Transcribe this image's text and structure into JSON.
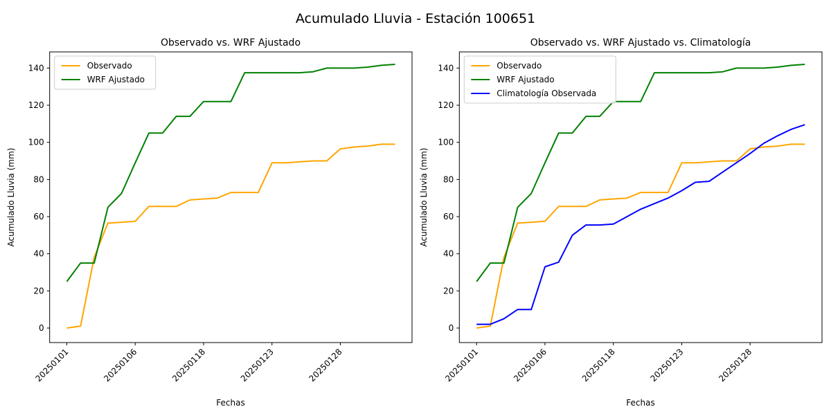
{
  "figure": {
    "title": "Acumulado Lluvia - Estación 100651",
    "background": "#ffffff"
  },
  "colors": {
    "observado": "#FFA500",
    "wrf_ajustado": "#008000",
    "climatologia": "#0000FF",
    "spine": "#000000",
    "legend_border": "#cccccc"
  },
  "chart_data": [
    {
      "type": "line",
      "title": "Observado vs. WRF Ajustado",
      "xlabel": "Fechas",
      "ylabel": "Acumulado Lluvia (mm)",
      "n_points": 25,
      "x_tick_indices": [
        0,
        5,
        10,
        15,
        20
      ],
      "x_tick_labels": [
        "20250101",
        "20250106",
        "20250118",
        "20250123",
        "20250128"
      ],
      "yticks": [
        0,
        20,
        40,
        60,
        80,
        100,
        120,
        140
      ],
      "ylim": [
        -8,
        149
      ],
      "grid": false,
      "legend_position": "upper-left",
      "series": [
        {
          "name": "Observado",
          "color_key": "observado",
          "values": [
            0,
            1,
            38,
            56.5,
            57,
            57.5,
            65.5,
            65.5,
            65.5,
            69,
            69.5,
            70,
            73,
            73,
            73,
            89,
            89,
            89.5,
            90,
            90,
            96.5,
            97.5,
            98,
            99,
            99
          ]
        },
        {
          "name": "WRF Ajustado",
          "color_key": "wrf_ajustado",
          "values": [
            25,
            35,
            35,
            65,
            72.5,
            89,
            105,
            105,
            114,
            114,
            122,
            122,
            122,
            137.5,
            137.5,
            137.5,
            137.5,
            137.5,
            138,
            140,
            140,
            140,
            140.5,
            141.5,
            142
          ]
        }
      ]
    },
    {
      "type": "line",
      "title": "Observado vs. WRF Ajustado vs. Climatología",
      "xlabel": "Fechas",
      "ylabel": "Acumulado Lluvia (mm)",
      "n_points": 25,
      "x_tick_indices": [
        0,
        5,
        10,
        15,
        20
      ],
      "x_tick_labels": [
        "20250101",
        "20250106",
        "20250118",
        "20250123",
        "20250128"
      ],
      "yticks": [
        0,
        20,
        40,
        60,
        80,
        100,
        120,
        140
      ],
      "ylim": [
        -8,
        149
      ],
      "grid": false,
      "legend_position": "upper-left",
      "series": [
        {
          "name": "Observado",
          "color_key": "observado",
          "values": [
            0,
            1,
            38,
            56.5,
            57,
            57.5,
            65.5,
            65.5,
            65.5,
            69,
            69.5,
            70,
            73,
            73,
            73,
            89,
            89,
            89.5,
            90,
            90,
            96.5,
            97.5,
            98,
            99,
            99
          ]
        },
        {
          "name": "WRF Ajustado",
          "color_key": "wrf_ajustado",
          "values": [
            25,
            35,
            35,
            65,
            72.5,
            89,
            105,
            105,
            114,
            114,
            122,
            122,
            122,
            137.5,
            137.5,
            137.5,
            137.5,
            137.5,
            138,
            140,
            140,
            140,
            140.5,
            141.5,
            142
          ]
        },
        {
          "name": "Climatología Observada",
          "color_key": "climatologia",
          "values": [
            2,
            2,
            5,
            10,
            10,
            33,
            35.5,
            50,
            55.5,
            55.5,
            56,
            60,
            64,
            67,
            70,
            74,
            78.5,
            79,
            84,
            89,
            94,
            99.5,
            103.5,
            107,
            109.5
          ]
        }
      ]
    }
  ]
}
